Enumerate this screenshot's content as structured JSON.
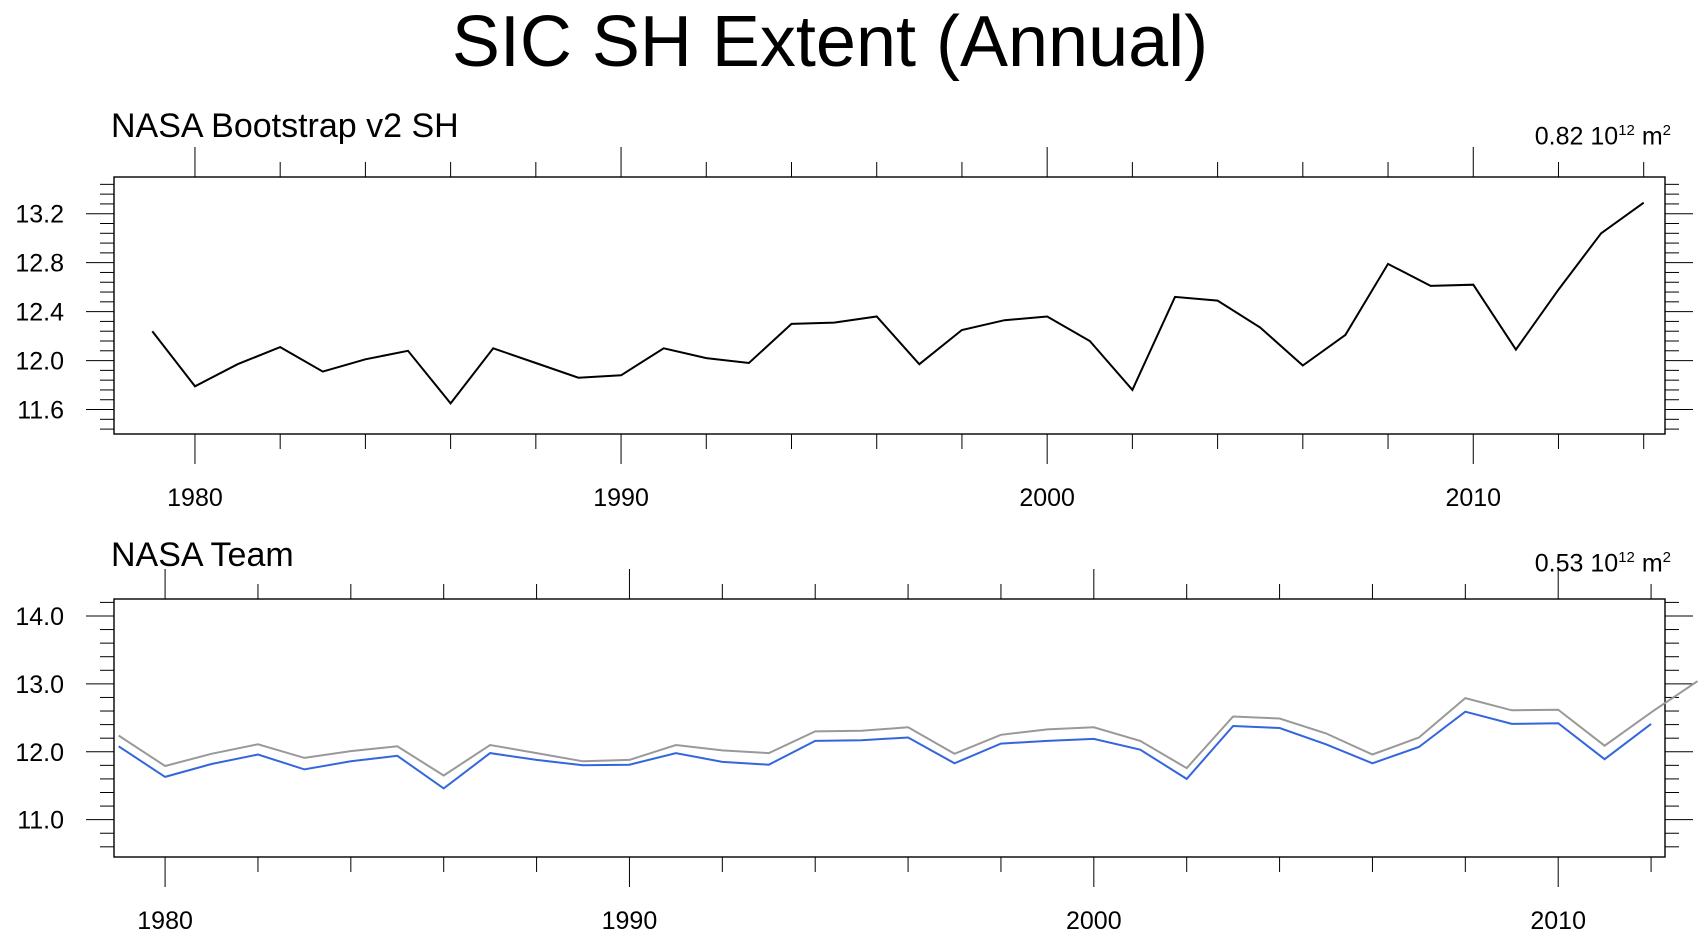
{
  "title": "SIC SH Extent (Annual)",
  "colors": {
    "axis": "#000000",
    "bootstrap_line": "#000000",
    "team_line": "#3366dd",
    "reference_line": "#999999"
  },
  "chart_data": [
    {
      "type": "line",
      "title": "NASA Bootstrap v2 SH",
      "units": {
        "value": "0.82",
        "base": "10",
        "exponent": "12",
        "unit": "m",
        "unit_exponent": "2"
      },
      "xlim": [
        1978.1,
        2014.5
      ],
      "ylim": [
        11.4,
        13.5
      ],
      "xticks": [
        1980,
        1990,
        2000,
        2010
      ],
      "xtick_labels": [
        "1980",
        "1990",
        "2000",
        "2010"
      ],
      "yticks": [
        11.6,
        12.0,
        12.4,
        12.8,
        13.2
      ],
      "ytick_labels": [
        "11.6",
        "12.0",
        "12.4",
        "12.8",
        "13.2"
      ],
      "series": [
        {
          "color": "#000000",
          "x": [
            1979,
            1980,
            1981,
            1982,
            1983,
            1984,
            1985,
            1986,
            1987,
            1988,
            1989,
            1990,
            1991,
            1992,
            1993,
            1994,
            1995,
            1996,
            1997,
            1998,
            1999,
            2000,
            2001,
            2002,
            2003,
            2004,
            2005,
            2006,
            2007,
            2008,
            2009,
            2010,
            2011,
            2012,
            2013,
            2014
          ],
          "y": [
            12.24,
            11.79,
            11.97,
            12.11,
            11.91,
            12.01,
            12.08,
            11.65,
            12.1,
            11.98,
            11.86,
            11.88,
            12.1,
            12.02,
            11.98,
            12.3,
            12.31,
            12.36,
            11.97,
            12.25,
            12.33,
            12.36,
            12.16,
            11.76,
            12.52,
            12.49,
            12.27,
            11.96,
            12.21,
            12.79,
            12.61,
            12.62,
            12.09,
            12.58,
            13.04,
            13.29
          ]
        }
      ]
    },
    {
      "type": "line",
      "title": "NASA Team",
      "units": {
        "value": "0.53",
        "base": "10",
        "exponent": "12",
        "unit": "m",
        "unit_exponent": "2"
      },
      "xlim": [
        1978.9,
        2012.3
      ],
      "ylim": [
        10.45,
        14.25
      ],
      "xticks": [
        1980,
        1990,
        2000,
        2010
      ],
      "xtick_labels": [
        "1980",
        "1990",
        "2000",
        "2010"
      ],
      "yticks": [
        11.0,
        12.0,
        13.0,
        14.0
      ],
      "ytick_labels": [
        "11.0",
        "12.0",
        "13.0",
        "14.0"
      ],
      "series": [
        {
          "color": "#999999",
          "x": [
            1979,
            1980,
            1981,
            1982,
            1983,
            1984,
            1985,
            1986,
            1987,
            1988,
            1989,
            1990,
            1991,
            1992,
            1993,
            1994,
            1995,
            1996,
            1997,
            1998,
            1999,
            2000,
            2001,
            2002,
            2003,
            2004,
            2005,
            2006,
            2007,
            2008,
            2009,
            2010,
            2011,
            2012,
            2013
          ],
          "y": [
            12.24,
            11.79,
            11.97,
            12.11,
            11.91,
            12.01,
            12.08,
            11.65,
            12.1,
            11.98,
            11.86,
            11.88,
            12.1,
            12.02,
            11.98,
            12.3,
            12.31,
            12.36,
            11.97,
            12.25,
            12.33,
            12.36,
            12.16,
            11.76,
            12.52,
            12.49,
            12.27,
            11.96,
            12.21,
            12.79,
            12.61,
            12.62,
            12.09,
            12.58,
            13.04
          ]
        },
        {
          "color": "#3366dd",
          "x": [
            1979,
            1980,
            1981,
            1982,
            1983,
            1984,
            1985,
            1986,
            1987,
            1988,
            1989,
            1990,
            1991,
            1992,
            1993,
            1994,
            1995,
            1996,
            1997,
            1998,
            1999,
            2000,
            2001,
            2002,
            2003,
            2004,
            2005,
            2006,
            2007,
            2008,
            2009,
            2010,
            2011,
            2012
          ],
          "y": [
            12.08,
            11.63,
            11.82,
            11.96,
            11.74,
            11.86,
            11.94,
            11.46,
            11.98,
            11.88,
            11.8,
            11.81,
            11.98,
            11.85,
            11.81,
            12.16,
            12.17,
            12.21,
            11.83,
            12.12,
            12.16,
            12.19,
            12.03,
            11.6,
            12.38,
            12.35,
            12.11,
            11.83,
            12.07,
            12.59,
            12.41,
            12.42,
            11.89,
            12.41
          ]
        }
      ]
    }
  ]
}
